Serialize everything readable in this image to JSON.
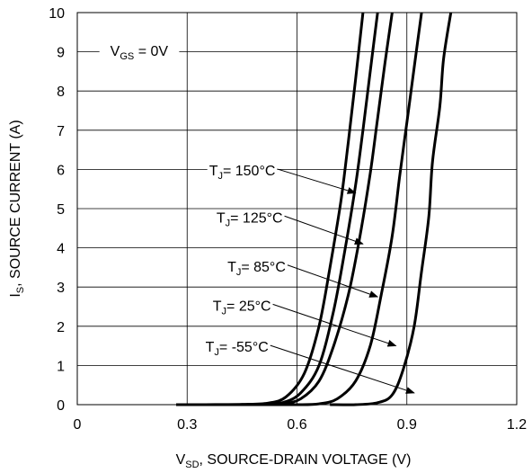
{
  "chart_data": {
    "type": "line",
    "xlabel": {
      "main": "V",
      "sub": "SD",
      "rest": ", SOURCE-DRAIN VOLTAGE (V)"
    },
    "ylabel": {
      "main": "I",
      "sub": "S",
      "rest": ", SOURCE CURRENT (A)"
    },
    "xlim": [
      0,
      1.2
    ],
    "ylim": [
      0,
      10
    ],
    "x_ticks": [
      "0",
      "0.3",
      "0.6",
      "0.9",
      "1.2"
    ],
    "x_tick_values": [
      0,
      0.3,
      0.6,
      0.9,
      1.2
    ],
    "y_ticks": [
      "0",
      "1",
      "2",
      "3",
      "4",
      "5",
      "6",
      "7",
      "8",
      "9",
      "10"
    ],
    "y_tick_values": [
      0,
      1,
      2,
      3,
      4,
      5,
      6,
      7,
      8,
      9,
      10
    ],
    "grid": true,
    "condition": {
      "main": "V",
      "sub": "GS",
      "rest": " = 0V"
    },
    "series": [
      {
        "name": "T_J = 150°C",
        "label": {
          "main": "T",
          "sub": "J",
          "rest": "= 150°C"
        },
        "x": [
          0.27,
          0.35,
          0.45,
          0.52,
          0.57,
          0.62,
          0.66,
          0.69,
          0.72,
          0.74,
          0.76,
          0.78
        ],
        "y": [
          0.0,
          0.0,
          0.01,
          0.04,
          0.2,
          0.8,
          2.0,
          3.5,
          5.2,
          6.7,
          8.3,
          10.0
        ]
      },
      {
        "name": "T_J = 125°C",
        "label": {
          "main": "T",
          "sub": "J",
          "rest": "= 125°C"
        },
        "x": [
          0.32,
          0.42,
          0.5,
          0.56,
          0.61,
          0.66,
          0.7,
          0.73,
          0.76,
          0.78,
          0.8,
          0.82
        ],
        "y": [
          0.0,
          0.0,
          0.01,
          0.05,
          0.3,
          1.0,
          2.4,
          3.9,
          5.6,
          7.0,
          8.5,
          10.0
        ]
      },
      {
        "name": "T_J = 85°C",
        "label": {
          "main": "T",
          "sub": "J",
          "rest": "= 85°C"
        },
        "x": [
          0.4,
          0.5,
          0.56,
          0.61,
          0.66,
          0.7,
          0.74,
          0.77,
          0.8,
          0.82,
          0.84,
          0.86
        ],
        "y": [
          0.0,
          0.0,
          0.02,
          0.15,
          0.6,
          1.5,
          2.8,
          4.2,
          5.9,
          7.3,
          8.7,
          10.0
        ]
      },
      {
        "name": "T_J = 25°C",
        "label": {
          "main": "T",
          "sub": "J",
          "rest": "= 25°C"
        },
        "x": [
          0.52,
          0.6,
          0.66,
          0.71,
          0.76,
          0.8,
          0.83,
          0.86,
          0.88,
          0.9,
          0.92,
          0.94
        ],
        "y": [
          0.0,
          0.0,
          0.02,
          0.15,
          0.6,
          1.5,
          2.8,
          4.3,
          5.8,
          7.2,
          8.6,
          10.0
        ]
      },
      {
        "name": "T_J = -55°C",
        "label": {
          "main": "T",
          "sub": "J",
          "rest": "= -55°C"
        },
        "x": [
          0.69,
          0.76,
          0.82,
          0.86,
          0.89,
          0.92,
          0.94,
          0.96,
          0.97,
          0.99,
          1.0,
          1.02
        ],
        "y": [
          0.0,
          0.0,
          0.05,
          0.25,
          0.9,
          2.0,
          3.4,
          4.8,
          6.2,
          7.6,
          8.8,
          10.0
        ]
      }
    ],
    "annotations": [
      {
        "series": 0,
        "text_at": [
          0.36,
          5.85
        ],
        "arrow_to": [
          0.76,
          5.4
        ]
      },
      {
        "series": 1,
        "text_at": [
          0.38,
          4.65
        ],
        "arrow_to": [
          0.78,
          4.1
        ]
      },
      {
        "series": 2,
        "text_at": [
          0.41,
          3.4
        ],
        "arrow_to": [
          0.82,
          2.75
        ]
      },
      {
        "series": 3,
        "text_at": [
          0.37,
          2.4
        ],
        "arrow_to": [
          0.87,
          1.5
        ]
      },
      {
        "series": 4,
        "text_at": [
          0.35,
          1.35
        ],
        "arrow_to": [
          0.92,
          0.3
        ]
      }
    ]
  }
}
